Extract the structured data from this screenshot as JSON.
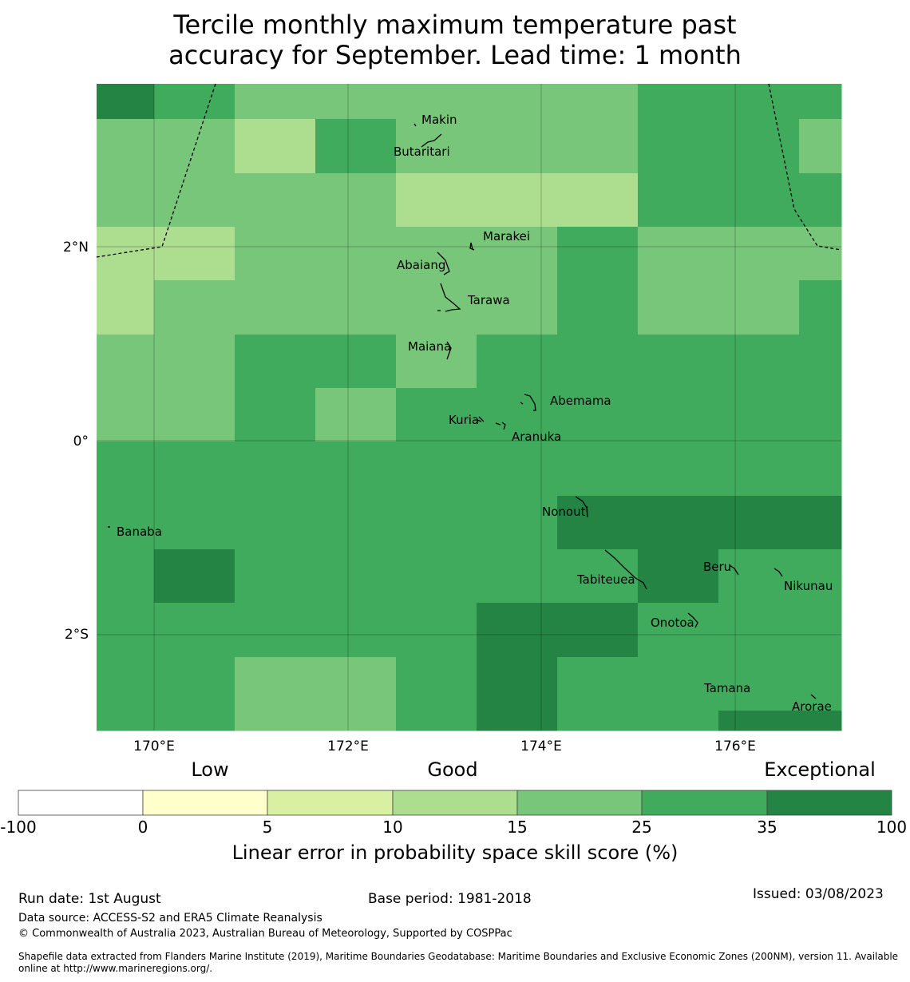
{
  "title": {
    "line1": "Tercile monthly maximum temperature past",
    "line2": "accuracy for September. Lead time: 1 month"
  },
  "map": {
    "axes": {
      "x_ticks": [
        "170°E",
        "172°E",
        "174°E",
        "176°E"
      ],
      "y_ticks": [
        "2°N",
        "0°",
        "2°S"
      ]
    },
    "color_scale": {
      "-100_0": "#ffffff",
      "0_5": "#ffffcc",
      "5_10": "#d9f0a3",
      "10_15": "#addd8e",
      "15_25": "#78c679",
      "25_35": "#41ab5d",
      "35_100": "#238443"
    },
    "islands": [
      "Makin",
      "Butaritari",
      "Marakei",
      "Abaiang",
      "Tarawa",
      "Maiana",
      "Abemama",
      "Kuria",
      "Aranuka",
      "Nonouti",
      "Banaba",
      "Tabiteuea",
      "Beru",
      "Nikunau",
      "Onotoa",
      "Tamana",
      "Arorae"
    ]
  },
  "legend": {
    "category_low": "Low",
    "category_good": "Good",
    "category_exceptional": "Exceptional",
    "ticks": [
      "-100",
      "0",
      "5",
      "10",
      "15",
      "25",
      "35",
      "100"
    ],
    "colors": [
      "#ffffff",
      "#ffffcc",
      "#d9f0a3",
      "#addd8e",
      "#78c679",
      "#41ab5d",
      "#238443"
    ],
    "label": "Linear error in probability space skill score (%)"
  },
  "footer": {
    "run_date": "Run date: 1st August",
    "base_period": "Base period: 1981-2018",
    "issued": "Issued: 03/08/2023",
    "data_source": "Data source: ACCESS-S2 and ERA5 Climate Reanalysis",
    "copyright": "© Commonwealth of Australia 2023, Australian Bureau of Meteorology, Supported by COSPPac",
    "shapefile_line1": "Shapefile data extracted from Flanders Marine Institute (2019), Maritime Boundaries Geodatabase: Maritime Boundaries and Exclusive Economic Zones (200NM), version 11. Available",
    "shapefile_line2": "online at http://www.marineregions.org/."
  }
}
